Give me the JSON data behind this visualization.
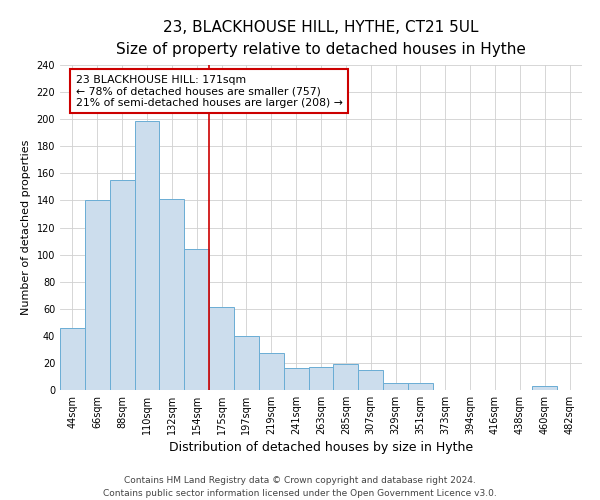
{
  "title": "23, BLACKHOUSE HILL, HYTHE, CT21 5UL",
  "subtitle": "Size of property relative to detached houses in Hythe",
  "xlabel": "Distribution of detached houses by size in Hythe",
  "ylabel": "Number of detached properties",
  "bin_labels": [
    "44sqm",
    "66sqm",
    "88sqm",
    "110sqm",
    "132sqm",
    "154sqm",
    "175sqm",
    "197sqm",
    "219sqm",
    "241sqm",
    "263sqm",
    "285sqm",
    "307sqm",
    "329sqm",
    "351sqm",
    "373sqm",
    "394sqm",
    "416sqm",
    "438sqm",
    "460sqm",
    "482sqm"
  ],
  "bar_heights": [
    46,
    140,
    155,
    199,
    141,
    104,
    61,
    40,
    27,
    16,
    17,
    19,
    15,
    5,
    5,
    0,
    0,
    0,
    0,
    3,
    0
  ],
  "bar_color": "#ccdded",
  "bar_edge_color": "#6aadd5",
  "vline_index": 6,
  "annotation_text": "23 BLACKHOUSE HILL: 171sqm\n← 78% of detached houses are smaller (757)\n21% of semi-detached houses are larger (208) →",
  "annotation_box_color": "#cc0000",
  "vline_color": "#cc0000",
  "grid_color": "#d0d0d0",
  "ylim": [
    0,
    240
  ],
  "yticks": [
    0,
    20,
    40,
    60,
    80,
    100,
    120,
    140,
    160,
    180,
    200,
    220,
    240
  ],
  "footnote": "Contains HM Land Registry data © Crown copyright and database right 2024.\nContains public sector information licensed under the Open Government Licence v3.0.",
  "footnote_fontsize": 6.5,
  "title_fontsize": 11,
  "subtitle_fontsize": 9,
  "xlabel_fontsize": 9,
  "ylabel_fontsize": 8,
  "tick_fontsize": 7,
  "annot_fontsize": 7.8
}
